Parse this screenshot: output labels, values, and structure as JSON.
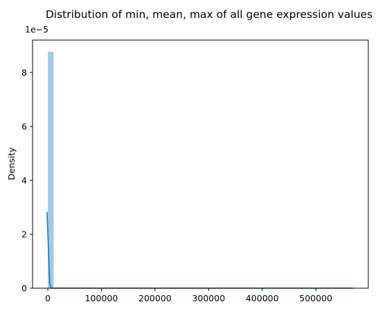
{
  "chart_data": {
    "type": "histogram",
    "title": "Distribution of min, mean, max of all gene expression values",
    "xlabel": "",
    "ylabel": "Density",
    "y_scale_label": "1e−5",
    "xlim": [
      -28500,
      598000
    ],
    "ylim": [
      0,
      9.2e-05
    ],
    "x_ticks": [
      {
        "value": 0,
        "label": "0"
      },
      {
        "value": 100000,
        "label": "100000"
      },
      {
        "value": 200000,
        "label": "200000"
      },
      {
        "value": 300000,
        "label": "300000"
      },
      {
        "value": 400000,
        "label": "400000"
      },
      {
        "value": 500000,
        "label": "500000"
      }
    ],
    "y_ticks": [
      {
        "value": 0,
        "label": "0"
      },
      {
        "value": 2e-05,
        "label": "2"
      },
      {
        "value": 4e-05,
        "label": "4"
      },
      {
        "value": 6e-05,
        "label": "6"
      },
      {
        "value": 8e-05,
        "label": "8"
      }
    ],
    "bins": {
      "start": 0,
      "width": 11400,
      "densities": [
        8.77e-05,
        2e-08,
        2e-08,
        1e-08,
        1e-08,
        1e-08,
        1e-08,
        1e-08,
        1e-08,
        1e-08,
        1e-08,
        1e-08,
        1e-08,
        1e-08,
        1e-08,
        1e-08,
        1e-08,
        1e-08,
        1e-08,
        1e-08,
        1e-08,
        1e-08,
        1e-08,
        1e-08,
        1e-08,
        1e-08,
        1e-08,
        1e-08,
        1e-08,
        1e-08,
        1e-08,
        1e-08,
        1e-08,
        1e-08,
        1e-08,
        1e-08,
        1e-08,
        1e-08,
        1e-08,
        1e-08,
        1e-08,
        1e-08,
        1e-08,
        1e-08,
        1e-08,
        1e-08,
        1e-08,
        1e-08,
        1e-08,
        1e-08
      ]
    },
    "kde": {
      "x": [
        -1500,
        1000,
        3500,
        6000,
        12000,
        60000,
        150000,
        250000,
        350000,
        450000,
        570000
      ],
      "y": [
        2.83e-05,
        1.6e-05,
        2e-06,
        5e-08,
        2e-08,
        1e-08,
        5e-09,
        5e-09,
        5e-09,
        5e-09,
        5e-09
      ]
    },
    "colors": {
      "bars": "#a6c9e2",
      "kde_line": "#1f77b4",
      "axes": "#000000"
    }
  }
}
